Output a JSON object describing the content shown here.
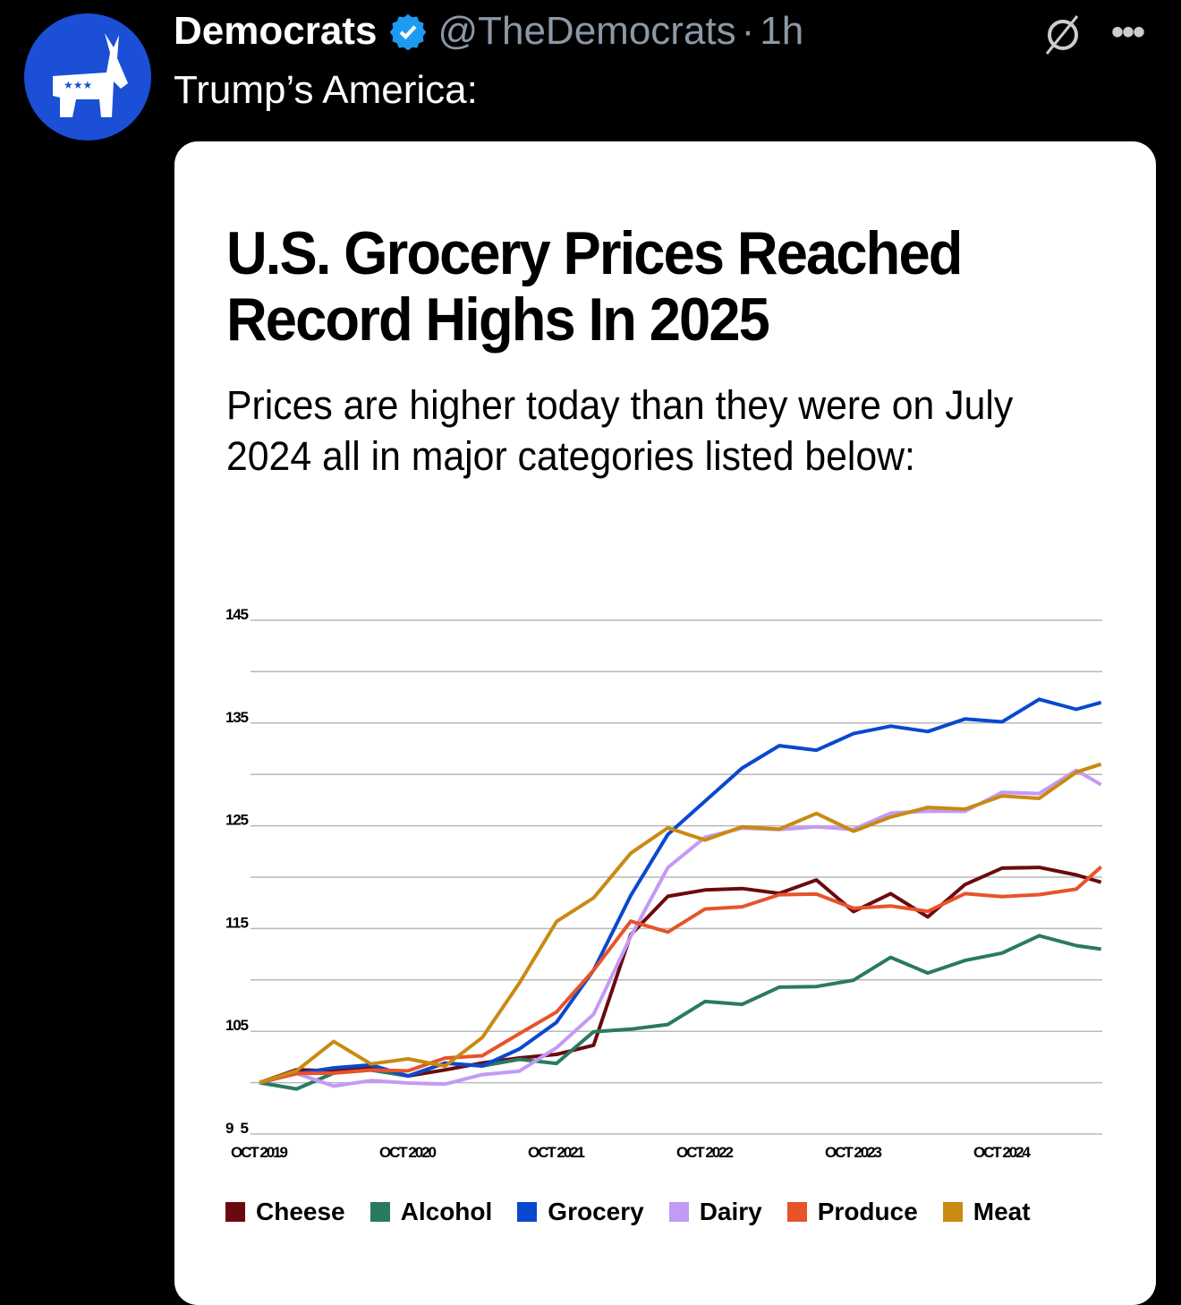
{
  "tweet": {
    "display_name": "Democrats",
    "handle": "@TheDemocrats",
    "separator": "·",
    "time": "1h",
    "text": "Trump’s America:",
    "verified": true,
    "icons": [
      "democrat-donkey-avatar",
      "verified-badge-icon",
      "grok-icon",
      "more-icon"
    ],
    "more_label": "•••"
  },
  "card": {
    "title": "U.S. Grocery Prices Reached Record Highs In 2025",
    "subtitle": "Prices are higher today than they were on July 2024 all in major categories listed below:"
  },
  "chart_data": {
    "type": "line",
    "title": "U.S. Grocery Prices Reached Record Highs In 2025",
    "xlabel": "",
    "ylabel": "",
    "x_unit": "months since Oct 2019",
    "x": [
      0,
      3,
      6,
      9,
      12,
      15,
      18,
      21,
      24,
      27,
      30,
      33,
      36,
      39,
      42,
      45,
      48,
      51,
      54,
      57,
      60,
      63,
      66,
      68
    ],
    "x_ticks": [
      {
        "x": 0,
        "label": "OCT 2019"
      },
      {
        "x": 12,
        "label": "OCT 2020"
      },
      {
        "x": 24,
        "label": "OCT 2021"
      },
      {
        "x": 36,
        "label": "OCT 2022"
      },
      {
        "x": 48,
        "label": "OCT 2023"
      },
      {
        "x": 60,
        "label": "OCT 2024"
      }
    ],
    "y_ticks": [
      {
        "y": 145,
        "label": "145"
      },
      {
        "y": 135,
        "label": "135"
      },
      {
        "y": 125,
        "label": "125"
      },
      {
        "y": 115,
        "label": "115"
      },
      {
        "y": 105,
        "label": "105"
      },
      {
        "y": 95,
        "label": "95"
      }
    ],
    "gridlines": [
      145,
      140,
      135,
      130,
      125,
      120,
      115,
      110,
      105,
      100,
      95
    ],
    "ylim": [
      95,
      145
    ],
    "xlim": [
      0,
      68
    ],
    "grid": true,
    "legend_position": "bottom",
    "series": [
      {
        "name": "Cheese",
        "color": "#6b0a0e",
        "values": [
          100,
          101,
          101.5,
          101,
          101,
          101,
          102,
          102.5,
          102.5,
          104,
          114,
          118.5,
          118.5,
          119,
          118.5,
          119.5,
          117,
          118,
          116.5,
          119,
          121,
          121,
          120,
          119.5
        ]
      },
      {
        "name": "Alcohol",
        "color": "#2a7a62",
        "values": [
          100,
          99.5,
          101,
          101,
          101,
          101.5,
          102,
          102,
          102,
          105,
          105,
          106,
          107.5,
          108,
          109,
          109.5,
          110,
          112,
          111,
          111.5,
          113,
          114,
          113.5,
          113
        ]
      },
      {
        "name": "Grocery",
        "color": "#0a48cf",
        "values": [
          100,
          101,
          101.5,
          101.5,
          101,
          101.5,
          102,
          103,
          106,
          111,
          118,
          124.5,
          127,
          131,
          132.5,
          132.5,
          134,
          134.5,
          134.5,
          135,
          135.5,
          137,
          136.5,
          137
        ]
      },
      {
        "name": "Dairy",
        "color": "#c39af5",
        "values": [
          100,
          100.5,
          100,
          100,
          100,
          100,
          100.5,
          101.5,
          103,
          107,
          114,
          121,
          124,
          124.5,
          125,
          124.5,
          125,
          126,
          126.5,
          126.5,
          128,
          128.5,
          130,
          129
        ]
      },
      {
        "name": "Produce",
        "color": "#e8532a",
        "values": [
          100,
          101,
          101,
          101,
          101.5,
          102,
          103,
          104.5,
          107,
          111,
          115.5,
          115,
          116.5,
          117.5,
          118,
          118.5,
          117,
          117,
          117,
          118,
          118.5,
          118,
          119,
          121
        ]
      },
      {
        "name": "Meat",
        "color": "#c98a12",
        "values": [
          100,
          101,
          104,
          102,
          102,
          102,
          104,
          110,
          115.5,
          118,
          122.5,
          124.5,
          124,
          124.5,
          125,
          126,
          124.5,
          126,
          126.5,
          127,
          127.5,
          128,
          130,
          131
        ]
      }
    ]
  }
}
